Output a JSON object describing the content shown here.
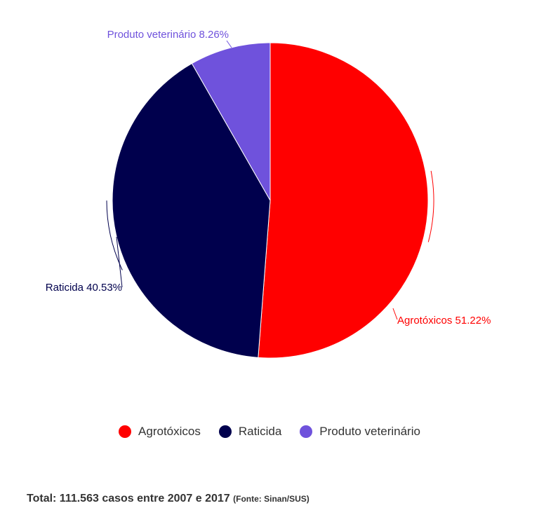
{
  "chart_data": {
    "type": "pie",
    "title": "",
    "slices": [
      {
        "name": "Agrotóxicos",
        "value": 51.22,
        "color": "#ff0000",
        "label": "Agrotóxicos 51.22%"
      },
      {
        "name": "Raticida",
        "value": 40.53,
        "color": "#00004d",
        "label": "Raticida 40.53%"
      },
      {
        "name": "Produto veterinário",
        "value": 8.26,
        "color": "#6f52dc",
        "label": "Produto veterinário 8.26%"
      }
    ],
    "legend_position": "bottom"
  },
  "footer": {
    "total_text": "Total: 111.563 casos entre 2007 e 2017",
    "source_text": "(Fonte: Sinan/SUS)"
  }
}
